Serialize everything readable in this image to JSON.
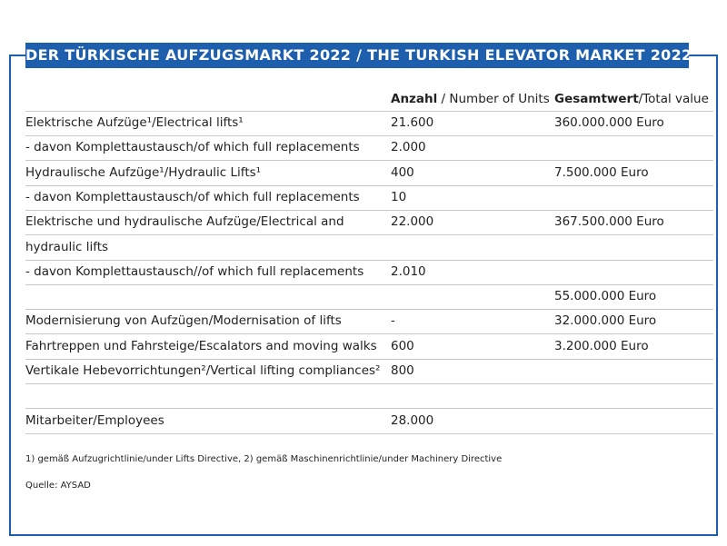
{
  "header": {
    "title": "DER TÜRKISCHE AUFZUGSMARKT 2022 / THE TURKISH ELEVATOR MARKET 2022"
  },
  "table": {
    "columns": [
      {
        "bold": "Anzahl",
        "normal": " / Number of Units"
      },
      {
        "bold": "Gesamtwert",
        "normal": "/Total value"
      }
    ],
    "rows": [
      [
        "Elektrische Aufzüge¹/Electrical lifts¹",
        "21.600",
        "360.000.000 Euro"
      ],
      [
        "- davon Komplettaustausch/of which full replacements",
        "2.000",
        null
      ],
      [
        "Hydraulische Aufzüge¹/Hydraulic Lifts¹",
        "400",
        "7.500.000 Euro"
      ],
      [
        "- davon Komplettaustausch/of which full replacements",
        "10",
        null
      ],
      [
        "Elektrische und hydraulische Aufzüge/Electrical and",
        "22.000",
        "367.500.000 Euro"
      ],
      [
        "hydraulic lifts",
        null,
        null
      ],
      [
        "- davon Komplettaustausch//of which full replacements",
        "2.010",
        null
      ],
      [
        null,
        null,
        "55.000.000 Euro"
      ],
      [
        "Modernisierung von Aufzügen/Modernisation of lifts",
        "-",
        "32.000.000 Euro"
      ],
      [
        "Fahrtreppen und Fahrsteige/Escalators and moving walks",
        "600",
        "3.200.000 Euro"
      ],
      [
        "Vertikale Hebevorrichtungen²/Vertical lifting compliances²",
        "800",
        null
      ],
      [
        null,
        null,
        null
      ],
      [
        "Mitarbeiter/Employees",
        "28.000",
        null
      ]
    ]
  },
  "footnote": "1) gemäß Aufzugrichtlinie/under Lifts Directive,  2) gemäß Maschinenrichtlinie/under Machinery Directive",
  "source": "Quelle: AYSAD"
}
